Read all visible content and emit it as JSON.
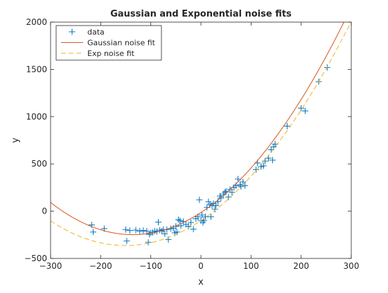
{
  "chart_data": {
    "type": "scatter",
    "title": "Gaussian and Exponential noise fits",
    "xlabel": "x",
    "ylabel": "y",
    "xlim": [
      -300,
      300
    ],
    "ylim": [
      -500,
      2000
    ],
    "xticks": [
      -300,
      -200,
      -100,
      0,
      100,
      200,
      300
    ],
    "yticks": [
      -500,
      0,
      500,
      1000,
      1500,
      2000
    ],
    "xtick_labels": [
      "−300",
      "−200",
      "−100",
      "0",
      "100",
      "200",
      "300"
    ],
    "ytick_labels": [
      "−500",
      "0",
      "500",
      "1000",
      "1500",
      "2000"
    ],
    "grid": false,
    "legend_position": "top-left",
    "legend": [
      "data",
      "Gaussian noise fit",
      "Exp noise fit"
    ],
    "series": [
      {
        "name": "data",
        "type": "scatter",
        "marker": "+",
        "color": "#0072BD",
        "x": [
          -218,
          -215,
          -193,
          -150,
          -148,
          -142,
          -130,
          -122,
          -115,
          -108,
          -105,
          -103,
          -100,
          -96,
          -92,
          -88,
          -85,
          -82,
          -78,
          -75,
          -72,
          -68,
          -65,
          -60,
          -55,
          -52,
          -50,
          -48,
          -45,
          -42,
          -40,
          -35,
          -30,
          -25,
          -20,
          -15,
          -10,
          -6,
          -3,
          0,
          2,
          4,
          6,
          9,
          12,
          15,
          18,
          20,
          22,
          25,
          28,
          30,
          34,
          38,
          40,
          45,
          48,
          50,
          55,
          58,
          62,
          66,
          70,
          74,
          78,
          80,
          84,
          88,
          110,
          113,
          120,
          125,
          128,
          135,
          140,
          143,
          145,
          148,
          172,
          200,
          208,
          235,
          252
        ],
        "y": [
          -145,
          -220,
          -185,
          -195,
          -315,
          -205,
          -200,
          -210,
          -205,
          -210,
          -330,
          -245,
          -230,
          -225,
          -210,
          -215,
          -115,
          -200,
          -210,
          -195,
          -240,
          -195,
          -300,
          -185,
          -180,
          -230,
          -160,
          -220,
          -90,
          -100,
          -155,
          -110,
          -140,
          -160,
          -120,
          -190,
          -80,
          -60,
          120,
          -100,
          -40,
          -120,
          -100,
          -60,
          40,
          100,
          70,
          -60,
          60,
          80,
          20,
          60,
          100,
          160,
          140,
          180,
          200,
          210,
          150,
          230,
          200,
          250,
          270,
          340,
          280,
          260,
          310,
          270,
          440,
          510,
          470,
          480,
          530,
          560,
          650,
          540,
          680,
          710,
          900,
          1090,
          1060,
          1370,
          1520
        ]
      },
      {
        "name": "Gaussian noise fit",
        "type": "line",
        "style": "solid",
        "color": "#D95319",
        "x": [
          -300,
          -250,
          -200,
          -150,
          -125,
          -100,
          -50,
          0,
          50,
          100,
          150,
          200,
          250,
          300
        ],
        "y": [
          94,
          -88,
          -200,
          -242,
          -243,
          -229,
          -155,
          -15,
          188,
          456,
          786,
          1181,
          1640,
          2162
        ]
      },
      {
        "name": "Exp noise fit",
        "type": "line",
        "style": "dashed",
        "color": "#EDB120",
        "x": [
          -300,
          -250,
          -200,
          -150,
          -125,
          -100,
          -50,
          0,
          50,
          100,
          150,
          200,
          250,
          300
        ],
        "y": [
          -95,
          -250,
          -338,
          -366,
          -362,
          -338,
          -245,
          -95,
          111,
          374,
          694,
          1073,
          1509,
          2003
        ]
      }
    ]
  }
}
